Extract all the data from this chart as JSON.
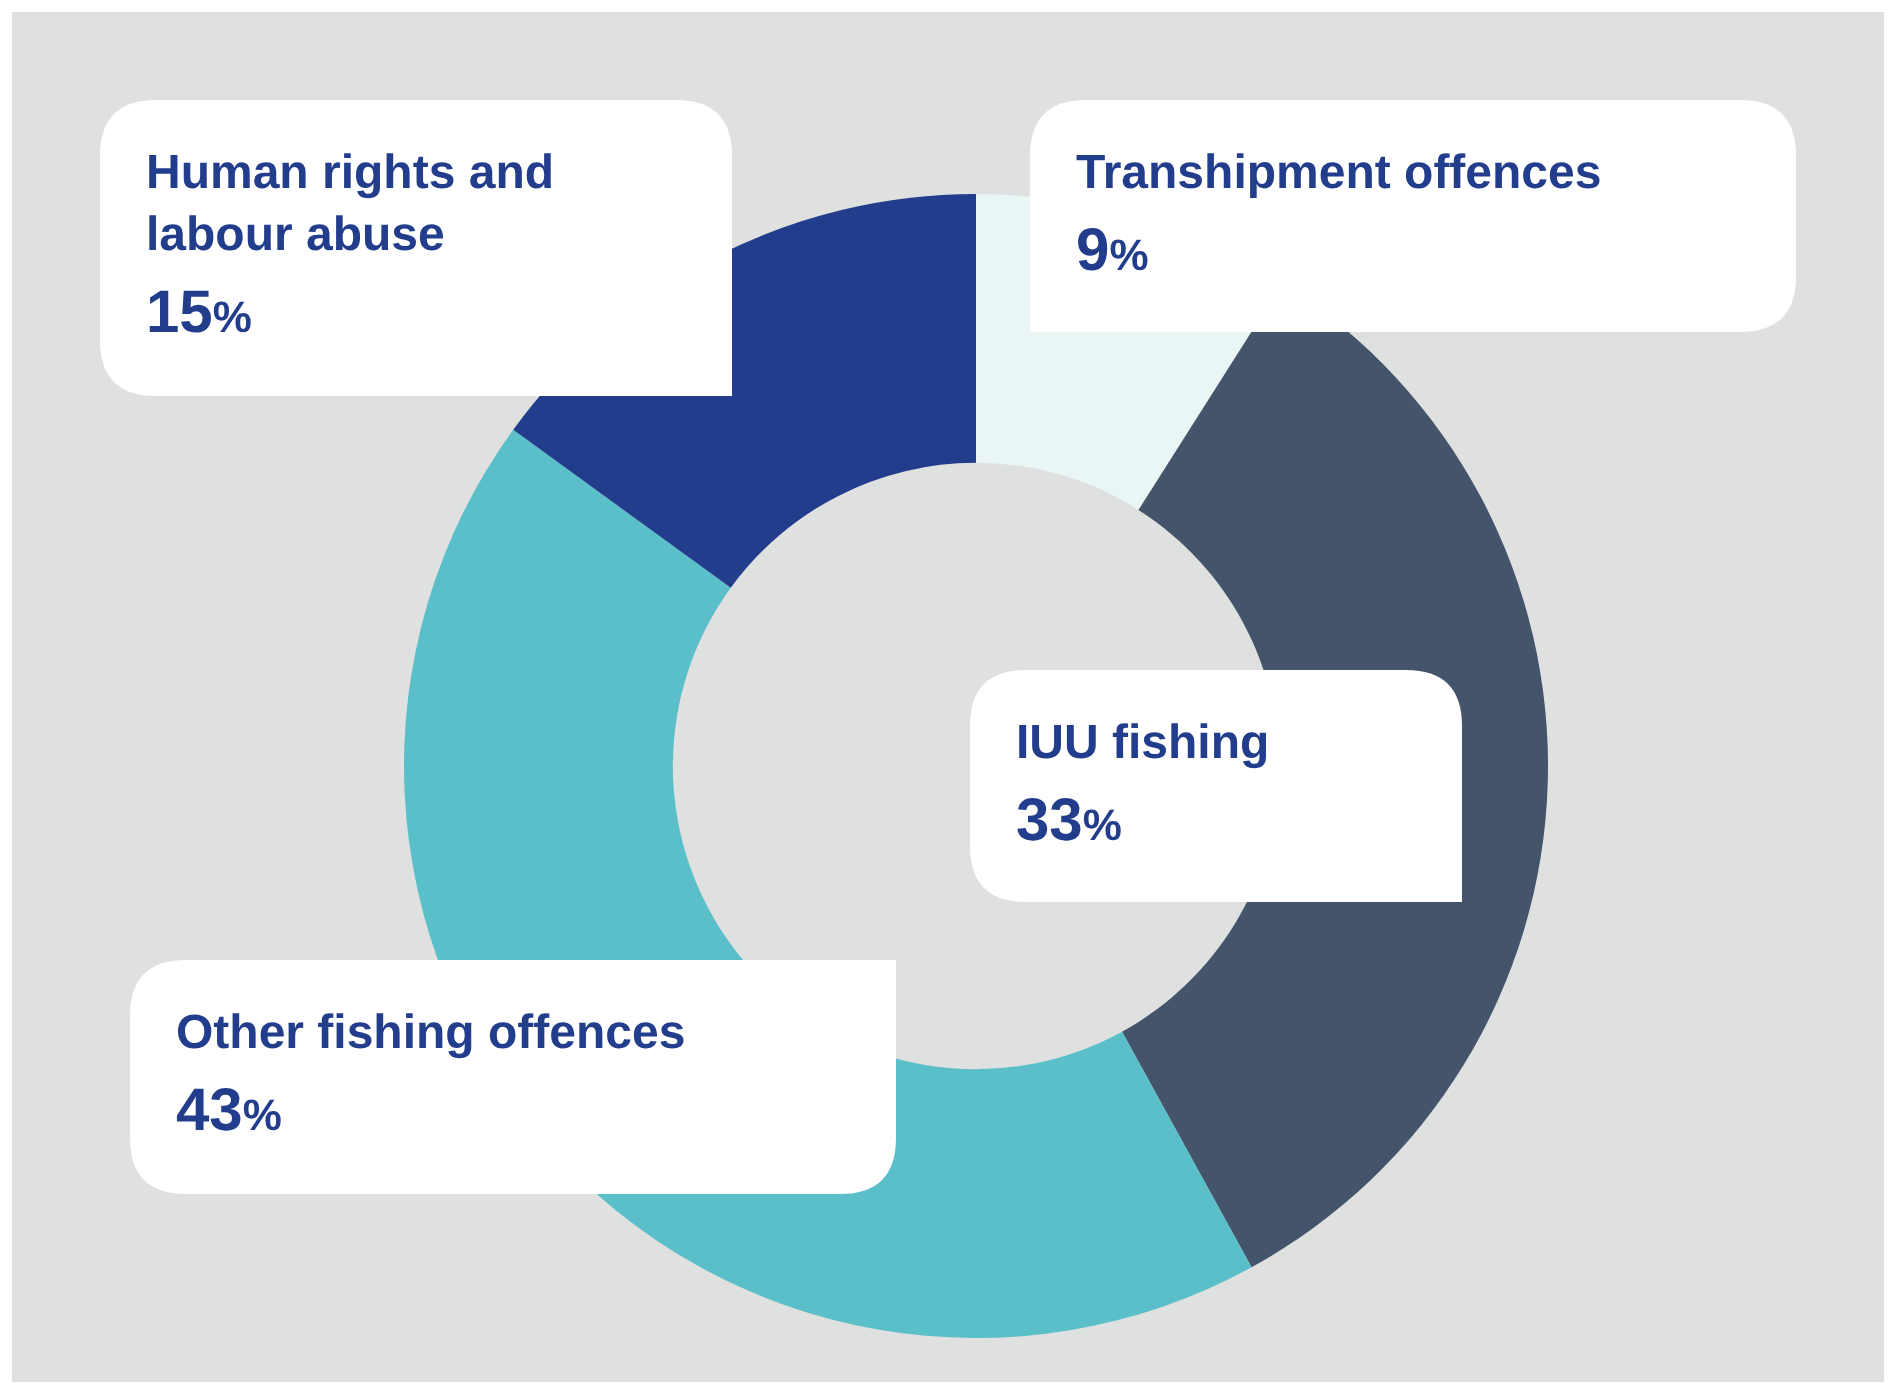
{
  "chart_data": {
    "type": "donut",
    "categories": [
      "Transhipment offences",
      "IUU fishing",
      "Other fishing offences",
      "Human rights and labour abuse"
    ],
    "values": [
      9,
      33,
      43,
      15
    ],
    "value_labels": [
      "9%",
      "33%",
      "43%",
      "15%"
    ],
    "colors": [
      "#eaf6f6",
      "#44546a",
      "#5bbfca",
      "#233d8d"
    ]
  }
}
